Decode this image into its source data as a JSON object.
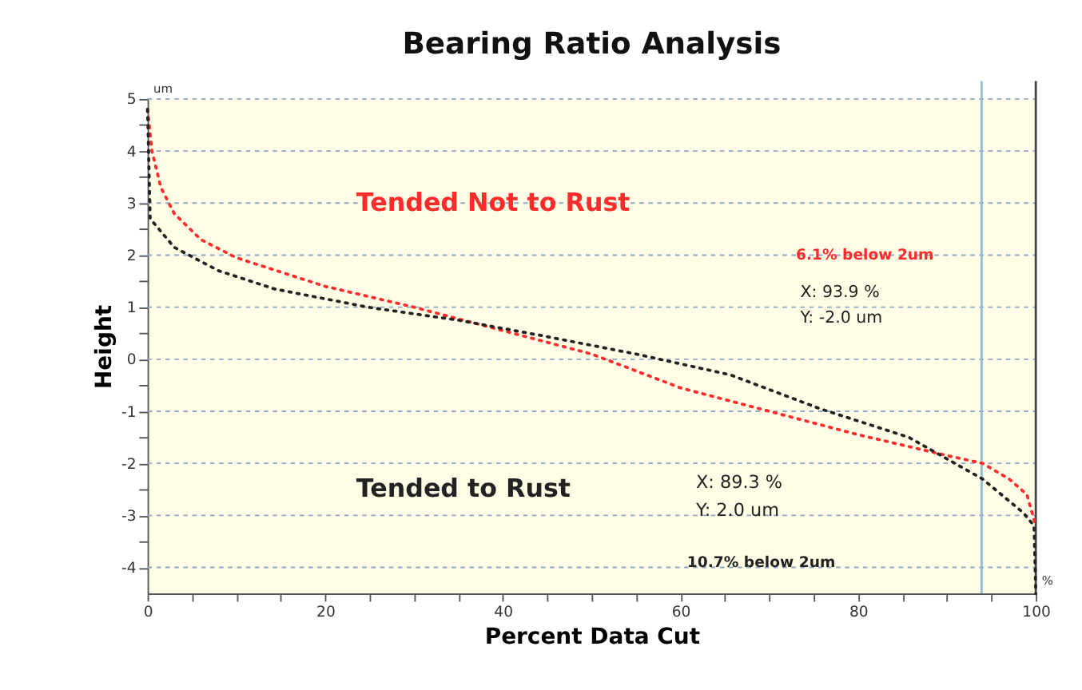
{
  "chart_data": {
    "type": "line",
    "title": "Bearing Ratio Analysis",
    "xlabel": "Percent Data Cut",
    "ylabel": "Height",
    "xlim": [
      0,
      100
    ],
    "ylim": [
      -4.5,
      5
    ],
    "xticks": [
      0,
      {
        "value": 5,
        "label": null
      },
      {
        "value": 10,
        "label": null
      },
      {
        "value": 15,
        "label": null
      },
      20,
      {
        "value": 25,
        "label": null
      },
      {
        "value": 30,
        "label": null
      },
      {
        "value": 35,
        "label": null
      },
      40,
      {
        "value": 45,
        "label": null
      },
      {
        "value": 50,
        "label": null
      },
      {
        "value": 55,
        "label": null
      },
      60,
      {
        "value": 65,
        "label": null
      },
      {
        "value": 70,
        "label": null
      },
      {
        "value": 75,
        "label": null
      },
      80,
      {
        "value": 85,
        "label": null
      },
      {
        "value": 90,
        "label": null
      },
      {
        "value": 95,
        "label": null
      },
      100
    ],
    "yticks": [
      -4,
      {
        "value": -3.5,
        "label": null
      },
      -3,
      {
        "value": -2.5,
        "label": null
      },
      -2,
      {
        "value": -1.5,
        "label": null
      },
      -1,
      {
        "value": -0.5,
        "label": null
      },
      0,
      {
        "value": 0.5,
        "label": null
      },
      1,
      {
        "value": 1.5,
        "label": null
      },
      2,
      {
        "value": 2.5,
        "label": null
      },
      3,
      {
        "value": 3.5,
        "label": null
      },
      4,
      {
        "value": 4.5,
        "label": null
      },
      5
    ],
    "grid": "y",
    "line_style": "dotted",
    "series": [
      {
        "name": "Tended Not to Rust",
        "color": "#ff2a2a",
        "x": [
          0,
          0.5,
          1.5,
          3,
          6,
          10,
          20,
          30,
          40,
          50,
          60,
          70,
          80,
          90,
          94,
          97,
          99,
          100
        ],
        "values": [
          4.8,
          4.0,
          3.3,
          2.8,
          2.3,
          1.95,
          1.4,
          1.0,
          0.55,
          0.1,
          -0.55,
          -1.0,
          -1.45,
          -1.85,
          -2.0,
          -2.3,
          -2.6,
          -3.2
        ]
      },
      {
        "name": "Tended to Rust",
        "color": "#222222",
        "x": [
          0,
          0.3,
          3,
          8,
          14.3,
          24.8,
          35,
          44.5,
          55,
          65.6,
          75.7,
          85.7,
          94,
          98.6,
          99.8,
          100
        ],
        "values": [
          4.8,
          2.7,
          2.15,
          1.7,
          1.35,
          1.0,
          0.75,
          0.45,
          0.1,
          -0.3,
          -0.95,
          -1.5,
          -2.3,
          -2.95,
          -3.2,
          -4.5
        ]
      }
    ],
    "ref_lines": [
      {
        "axis": "x",
        "value": 93.9,
        "color": "#8fbcd8"
      },
      {
        "axis": "x",
        "value": 100,
        "color": "#444444"
      }
    ],
    "annotations": [
      "um",
      "%",
      "6.1% below 2um",
      "X: 93.9 %",
      "Y: -2.0 um",
      "X: 89.3 %",
      "Y: 2.0 um",
      "10.7% below 2um"
    ]
  }
}
